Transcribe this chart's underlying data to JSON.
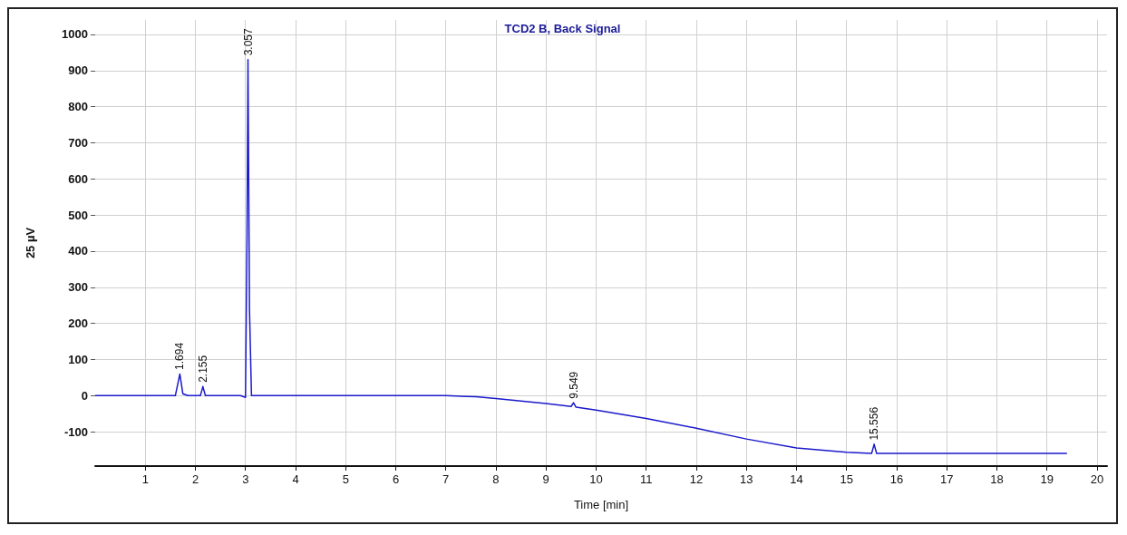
{
  "chart_data": {
    "type": "line",
    "title": "TCD2 B, Back Signal",
    "xlabel": "Time [min]",
    "ylabel": "25 µV",
    "series": [
      {
        "color": "#1a1acc",
        "x": [
          0,
          1.4,
          1.6,
          1.69,
          1.75,
          1.85,
          2.1,
          2.15,
          2.2,
          2.9,
          3.0,
          3.03,
          3.05,
          3.08,
          3.12,
          3.3,
          4.0,
          5.0,
          6.0,
          7.0,
          7.6,
          8.0,
          9.0,
          9.5,
          9.55,
          9.6,
          10.0,
          11.0,
          12.0,
          13.0,
          14.0,
          15.0,
          15.5,
          15.55,
          15.6,
          16.0,
          17.0,
          18.0,
          19.0,
          19.4
        ],
        "values": [
          0,
          0,
          0,
          60,
          5,
          0,
          0,
          25,
          0,
          0,
          -5,
          430,
          930,
          240,
          0,
          0,
          0,
          0,
          0,
          0,
          -3,
          -8,
          -22,
          -30,
          -20,
          -32,
          -40,
          -63,
          -90,
          -120,
          -145,
          -157,
          -160,
          -135,
          -160,
          -160,
          -160,
          -160,
          -160,
          -160
        ]
      }
    ],
    "xlim": [
      0,
      20.2
    ],
    "xticks": [
      1,
      2,
      3,
      4,
      5,
      6,
      7,
      8,
      9,
      10,
      11,
      12,
      13,
      14,
      15,
      16,
      17,
      18,
      19,
      20
    ],
    "ylim": [
      -195,
      1040
    ],
    "yticks": [
      -100,
      0,
      100,
      200,
      300,
      400,
      500,
      600,
      700,
      800,
      900,
      1000
    ],
    "grid": true,
    "marker": "none",
    "line_style": "solid",
    "annotations": [
      {
        "text": "1.694",
        "x": 1.69,
        "y": 60
      },
      {
        "text": "2.155",
        "x": 2.15,
        "y": 25
      },
      {
        "text": "3.057",
        "x": 3.05,
        "y": 930
      },
      {
        "text": "9.549",
        "x": 9.55,
        "y": -20
      },
      {
        "text": "15.556",
        "x": 15.55,
        "y": -135
      }
    ]
  }
}
